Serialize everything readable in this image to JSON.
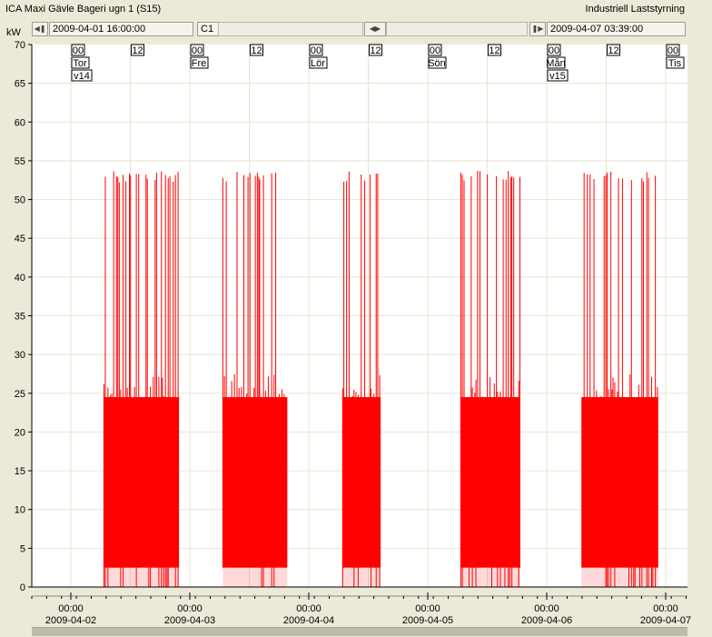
{
  "window": {
    "title": "ICA Maxi Gävle Bageri ugn 1 (S15)",
    "app_label": "Industriell Laststyrning"
  },
  "nav": {
    "start_time": "2009-04-01 16:00:00",
    "channel": "C1",
    "end_time": "2009-04-07 03:39:00",
    "first_icon": "skip-to-start-icon",
    "scroll_icon": "horizontal-scroll-arrows-icon",
    "last_icon": "skip-to-end-icon"
  },
  "colors": {
    "series": "#ff0000",
    "plot_background": "#ffffff",
    "gridline": "#e6e6cc",
    "panel": "#ece9d8"
  },
  "chart_data": {
    "type": "area",
    "title": "",
    "ylabel": "kW",
    "xlabel": "",
    "ylim": [
      0,
      70
    ],
    "yticks": [
      0,
      5,
      10,
      15,
      20,
      25,
      30,
      35,
      40,
      45,
      50,
      55,
      60,
      65,
      70
    ],
    "xlim": [
      "2009-04-01 16:00",
      "2009-04-07 03:39"
    ],
    "grid": true,
    "top_hour_markers": [
      {
        "time": "2009-04-02 00:00",
        "label": "00",
        "day": "Tor",
        "week": "v14"
      },
      {
        "time": "2009-04-02 12:00",
        "label": "12"
      },
      {
        "time": "2009-04-03 00:00",
        "label": "00",
        "day": "Fre"
      },
      {
        "time": "2009-04-03 12:00",
        "label": "12"
      },
      {
        "time": "2009-04-04 00:00",
        "label": "00",
        "day": "Lör"
      },
      {
        "time": "2009-04-04 12:00",
        "label": "12"
      },
      {
        "time": "2009-04-05 00:00",
        "label": "00",
        "day": "Sön"
      },
      {
        "time": "2009-04-05 12:00",
        "label": "12"
      },
      {
        "time": "2009-04-06 00:00",
        "label": "00",
        "day": "Mån",
        "week": "v15"
      },
      {
        "time": "2009-04-06 12:00",
        "label": "12"
      },
      {
        "time": "2009-04-07 00:00",
        "label": "00",
        "day": "Tis"
      }
    ],
    "x_ticks": [
      {
        "time": "2009-04-02 00:00",
        "label": "00:00",
        "date": "2009-04-02"
      },
      {
        "time": "2009-04-03 00:00",
        "label": "00:00",
        "date": "2009-04-03"
      },
      {
        "time": "2009-04-04 00:00",
        "label": "00:00",
        "date": "2009-04-04"
      },
      {
        "time": "2009-04-05 00:00",
        "label": "00:00",
        "date": "2009-04-05"
      },
      {
        "time": "2009-04-06 00:00",
        "label": "00:00",
        "date": "2009-04-06"
      },
      {
        "time": "2009-04-07 00:00",
        "label": "00:00",
        "date": "2009-04-07"
      }
    ],
    "series": [
      {
        "production_periods": [
          {
            "start": "2009-04-02 06:40",
            "end": "2009-04-02 21:50",
            "peak_kw": 53.7,
            "base_kw": 24.5,
            "min_kw": 2.5
          },
          {
            "start": "2009-04-03 06:40",
            "end": "2009-04-03 19:40",
            "peak_kw": 53.7,
            "base_kw": 24.5,
            "min_kw": 2.5
          },
          {
            "start": "2009-04-04 06:50",
            "end": "2009-04-04 14:30",
            "peak_kw": 53.7,
            "base_kw": 24.5,
            "min_kw": 2.5
          },
          {
            "start": "2009-04-05 06:40",
            "end": "2009-04-05 18:40",
            "peak_kw": 53.7,
            "base_kw": 24.5,
            "min_kw": 2.5
          },
          {
            "start": "2009-04-06 07:00",
            "end": "2009-04-06 22:30",
            "peak_kw": 53.7,
            "base_kw": 24.5,
            "min_kw": 2.5
          }
        ]
      }
    ]
  }
}
